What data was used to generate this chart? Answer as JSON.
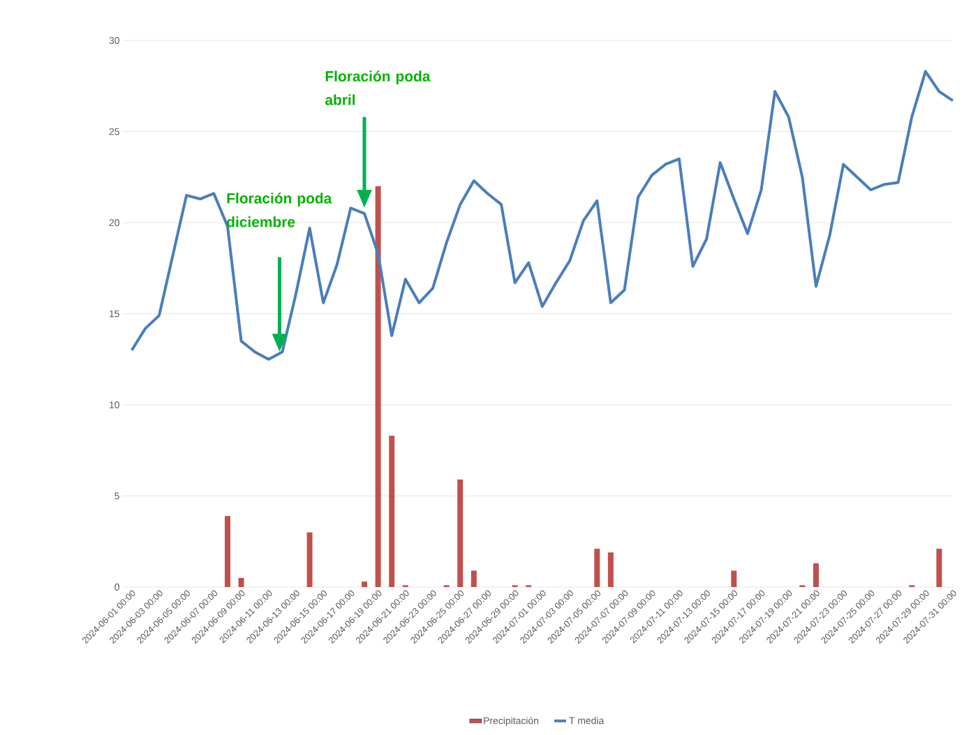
{
  "chart_data": {
    "type": "line",
    "categories": [
      "2024-06-01 00:00",
      null,
      "2024-06-03 00:00",
      null,
      "2024-06-05 00:00",
      null,
      "2024-06-07 00:00",
      null,
      "2024-06-09 00:00",
      null,
      "2024-06-11 00:00",
      null,
      "2024-06-13 00:00",
      null,
      "2024-06-15 00:00",
      null,
      "2024-06-17 00:00",
      null,
      "2024-06-19 00:00",
      null,
      "2024-06-21 00:00",
      null,
      "2024-06-23 00:00",
      null,
      "2024-06-25 00:00",
      null,
      "2024-06-27 00:00",
      null,
      "2024-06-29 00:00",
      null,
      "2024-07-01 00:00",
      null,
      "2024-07-03 00:00",
      null,
      "2024-07-05 00:00",
      null,
      "2024-07-07 00:00",
      null,
      "2024-07-09 00:00",
      null,
      "2024-07-11 00:00",
      null,
      "2024-07-13 00:00",
      null,
      "2024-07-15 00:00",
      null,
      "2024-07-17 00:00",
      null,
      "2024-07-19 00:00",
      null,
      "2024-07-21 00:00",
      null,
      "2024-07-23 00:00",
      null,
      "2024-07-25 00:00",
      null,
      "2024-07-27 00:00",
      null,
      "2024-07-29 00:00",
      null,
      "2024-07-31 00:00"
    ],
    "series": [
      {
        "name": "Precipitación",
        "type": "bar",
        "color": "#c0504d",
        "values": [
          0,
          0,
          0,
          0,
          0,
          0,
          0,
          3.9,
          0.5,
          0,
          0,
          0,
          0,
          3.0,
          0,
          0,
          0,
          0.3,
          22.0,
          8.3,
          0.1,
          0,
          0,
          0.1,
          5.9,
          0.9,
          0,
          0,
          0.1,
          0.1,
          0,
          0,
          0,
          0,
          2.1,
          1.9,
          0,
          0,
          0,
          0,
          0,
          0,
          0,
          0,
          0.9,
          0,
          0,
          0,
          0,
          0.1,
          1.3,
          0,
          0,
          0,
          0,
          0,
          0,
          0.1,
          0,
          2.1,
          0
        ]
      },
      {
        "name": "T media",
        "color": "#4a7ebb",
        "values": [
          13.0,
          14.2,
          14.9,
          18.2,
          21.5,
          21.3,
          21.6,
          19.8,
          13.5,
          12.9,
          12.5,
          12.9,
          16.1,
          19.7,
          15.6,
          17.7,
          20.8,
          20.5,
          18.3,
          13.8,
          16.9,
          15.6,
          16.4,
          18.9,
          21.0,
          22.3,
          21.6,
          21.0,
          16.7,
          17.8,
          15.4,
          16.7,
          17.9,
          20.1,
          21.2,
          15.6,
          16.3,
          21.4,
          22.6,
          23.2,
          23.5,
          17.6,
          19.1,
          23.3,
          21.3,
          19.4,
          21.8,
          27.2,
          25.8,
          22.5,
          16.5,
          19.3,
          23.2,
          22.5,
          21.8,
          22.1,
          22.2,
          25.8,
          28.3,
          27.2,
          26.7
        ]
      }
    ],
    "ylim": [
      0,
      30
    ],
    "yticks": [
      0,
      5,
      10,
      15,
      20,
      25,
      30
    ],
    "grid": "y",
    "legend": "bottom",
    "annotations": [
      "Floración poda diciembre",
      "Floración poda abril"
    ]
  }
}
